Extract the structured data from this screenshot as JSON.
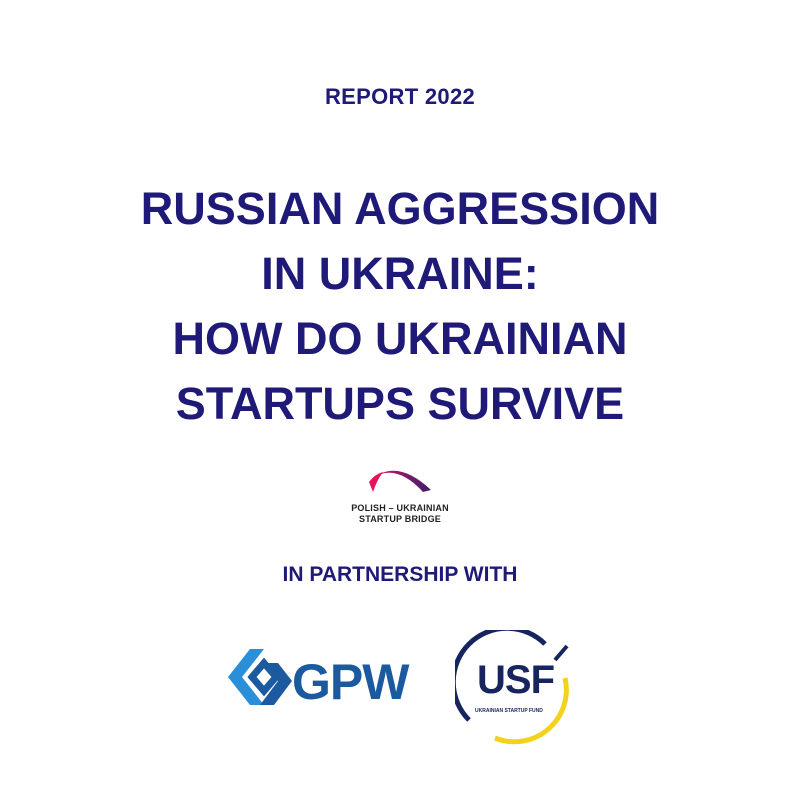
{
  "header": {
    "report": "REPORT 2022"
  },
  "title": {
    "lines": [
      "RUSSIAN AGGRESSION",
      "IN UKRAINE:",
      "HOW DO UKRAINIAN",
      "STARTUPS SURVIVE"
    ]
  },
  "bridge_logo": {
    "line1": "POLISH – UKRAINIAN",
    "line2": "STARTUP BRIDGE"
  },
  "partnership": "IN PARTNERSHIP WITH",
  "partners": {
    "gpw": "GPW",
    "usf": "USF",
    "usf_sub": "UKRAINIAN STARTUP FUND"
  },
  "colors": {
    "text": "#1f1a78",
    "gpw_blue": "#1c5aa0",
    "usf_navy": "#16255e",
    "usf_yellow": "#f2d21b",
    "bridge_pink": "#e8125c",
    "bridge_purple": "#3a1f6e"
  }
}
